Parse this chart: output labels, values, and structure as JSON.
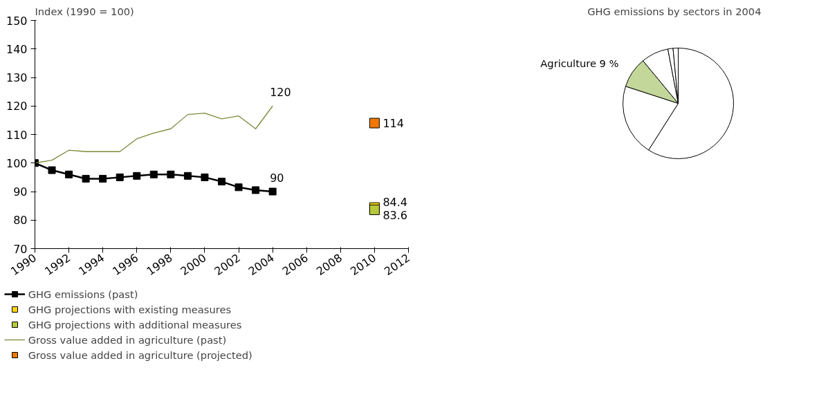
{
  "chart_data": [
    {
      "type": "line",
      "ylabel": "Index (1990 = 100)",
      "xlim": [
        1990,
        2012
      ],
      "xticks": [
        1990,
        1992,
        1994,
        1996,
        1998,
        2000,
        2002,
        2004,
        2006,
        2008,
        2010,
        2012
      ],
      "ylim": [
        70,
        150
      ],
      "yticks": [
        70,
        80,
        90,
        100,
        110,
        120,
        130,
        140,
        150
      ],
      "grid": false,
      "legend": "bottom",
      "series": [
        {
          "name": "GHG emissions (past)",
          "type": "line",
          "marker": "square",
          "color": "#000000",
          "x": [
            1990,
            1991,
            1992,
            1993,
            1994,
            1995,
            1996,
            1997,
            1998,
            1999,
            2000,
            2001,
            2002,
            2003,
            2004
          ],
          "values": [
            100,
            97.5,
            96,
            94.5,
            94.5,
            95,
            95.5,
            96,
            96,
            95.5,
            95,
            93.5,
            91.5,
            90.5,
            90
          ],
          "value_labels": [
            null,
            null,
            null,
            null,
            null,
            null,
            null,
            null,
            null,
            null,
            null,
            null,
            null,
            null,
            "90"
          ]
        },
        {
          "name": "GHG projections with existing measures",
          "type": "scatter",
          "marker": "square",
          "color": "#ffd700",
          "x": [
            2010
          ],
          "values": [
            84.4
          ],
          "data_labels": true
        },
        {
          "name": "GHG projections with additional measures",
          "type": "scatter",
          "marker": "square",
          "color": "#b8c83a",
          "x": [
            2010
          ],
          "values": [
            83.6
          ],
          "data_labels": true
        },
        {
          "name": "Gross value added in agriculture (past)",
          "type": "line",
          "color": "#7a8a3a",
          "x": [
            1990,
            1991,
            1992,
            1993,
            1994,
            1995,
            1996,
            1997,
            1998,
            1999,
            2000,
            2001,
            2002,
            2003,
            2004
          ],
          "values": [
            100,
            101,
            104.5,
            104,
            104,
            104,
            108.5,
            110.5,
            112,
            117,
            117.5,
            115.5,
            116.5,
            112,
            120
          ],
          "value_labels": [
            null,
            null,
            null,
            null,
            null,
            null,
            null,
            null,
            null,
            null,
            null,
            null,
            null,
            null,
            "120"
          ]
        },
        {
          "name": "Gross value added in agriculture (projected)",
          "type": "scatter",
          "marker": "square",
          "color": "#f07800",
          "x": [
            2010
          ],
          "values": [
            114
          ],
          "data_labels": true
        }
      ]
    },
    {
      "type": "pie",
      "title": "GHG emissions by sectors in 2004",
      "categories": [
        null,
        null,
        "Agriculture",
        null,
        null,
        null
      ],
      "values": [
        59,
        21,
        9,
        8,
        1.5,
        1.5
      ],
      "value_labels": [
        null,
        null,
        "9 %",
        null,
        null,
        null
      ],
      "colors": [
        "#ffffff",
        "#ffffff",
        "#c4d79b",
        "#ffffff",
        "#ffffff",
        "#ffffff"
      ]
    }
  ]
}
